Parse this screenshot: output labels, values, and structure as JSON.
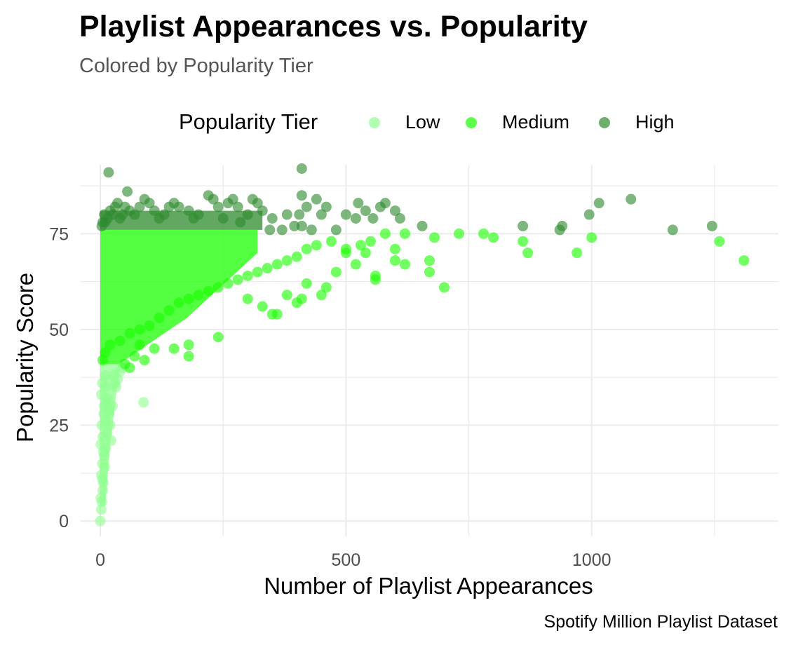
{
  "chart_data": {
    "type": "scatter",
    "title": "Playlist Appearances vs. Popularity",
    "subtitle": "Colored by Popularity Tier",
    "caption": "Spotify Million Playlist Dataset",
    "xlabel": "Number of Playlist Appearances",
    "ylabel": "Popularity Score",
    "xlim": [
      -40,
      1380
    ],
    "ylim": [
      -4,
      93
    ],
    "x_ticks": [
      0,
      500,
      1000
    ],
    "y_ticks": [
      0,
      25,
      50,
      75
    ],
    "grid": true,
    "legend": {
      "title": "Popularity Tier",
      "placement": "top",
      "entries": [
        "Low",
        "Medium",
        "High"
      ]
    },
    "series": [
      {
        "name": "Low",
        "color": "#90ff90",
        "points": [
          [
            0,
            0
          ],
          [
            3,
            5
          ],
          [
            5,
            8
          ],
          [
            2,
            12
          ],
          [
            4,
            15
          ],
          [
            6,
            18
          ],
          [
            1,
            20
          ],
          [
            5,
            22
          ],
          [
            3,
            25
          ],
          [
            7,
            28
          ],
          [
            8,
            30
          ],
          [
            2,
            33
          ],
          [
            4,
            36
          ],
          [
            10,
            38
          ],
          [
            12,
            35
          ],
          [
            15,
            32
          ],
          [
            18,
            28
          ],
          [
            20,
            25
          ],
          [
            25,
            30
          ],
          [
            30,
            36
          ],
          [
            35,
            37
          ],
          [
            40,
            39
          ],
          [
            22,
            21
          ],
          [
            88,
            31
          ],
          [
            12,
            26
          ],
          [
            6,
            10
          ],
          [
            9,
            14
          ],
          [
            11,
            19
          ],
          [
            14,
            23
          ],
          [
            17,
            29
          ],
          [
            1,
            6
          ],
          [
            2,
            3
          ],
          [
            4,
            11
          ],
          [
            8,
            17
          ],
          [
            13,
            31
          ],
          [
            28,
            38
          ],
          [
            32,
            35
          ],
          [
            45,
            40
          ]
        ]
      },
      {
        "name": "Medium",
        "color": "#1aff00",
        "points": [
          [
            600,
            68
          ],
          [
            670,
            68
          ],
          [
            700,
            61
          ],
          [
            670,
            65
          ],
          [
            620,
            67
          ],
          [
            560,
            63
          ],
          [
            560,
            64
          ],
          [
            540,
            70
          ],
          [
            520,
            67
          ],
          [
            500,
            70
          ],
          [
            480,
            65
          ],
          [
            460,
            61
          ],
          [
            450,
            59
          ],
          [
            420,
            62
          ],
          [
            410,
            58
          ],
          [
            400,
            57
          ],
          [
            380,
            59
          ],
          [
            360,
            54
          ],
          [
            350,
            54
          ],
          [
            330,
            56
          ],
          [
            300,
            58
          ],
          [
            240,
            48
          ],
          [
            180,
            43
          ],
          [
            180,
            46
          ],
          [
            150,
            45
          ],
          [
            110,
            45
          ],
          [
            90,
            42
          ],
          [
            80,
            46
          ],
          [
            60,
            40
          ],
          [
            70,
            43
          ],
          [
            50,
            41
          ],
          [
            1260,
            73
          ],
          [
            1310,
            68
          ],
          [
            1000,
            74
          ],
          [
            970,
            70
          ],
          [
            860,
            73
          ],
          [
            870,
            70
          ],
          [
            800,
            74
          ],
          [
            780,
            75
          ],
          [
            730,
            75
          ],
          [
            680,
            74
          ],
          [
            620,
            75
          ],
          [
            600,
            71
          ],
          [
            580,
            75
          ],
          [
            550,
            73
          ],
          [
            530,
            72
          ],
          [
            500,
            71
          ],
          [
            470,
            73
          ],
          [
            440,
            72
          ],
          [
            420,
            71
          ],
          [
            400,
            69
          ],
          [
            380,
            68
          ],
          [
            360,
            67
          ],
          [
            340,
            66
          ],
          [
            320,
            65
          ],
          [
            300,
            64
          ],
          [
            280,
            63
          ],
          [
            260,
            62
          ],
          [
            240,
            61
          ],
          [
            220,
            60
          ],
          [
            200,
            59
          ],
          [
            180,
            58
          ],
          [
            160,
            57
          ],
          [
            140,
            55
          ],
          [
            120,
            53
          ],
          [
            100,
            51
          ],
          [
            80,
            50
          ],
          [
            60,
            49
          ],
          [
            40,
            47
          ],
          [
            20,
            46
          ],
          [
            10,
            44
          ],
          [
            5,
            42
          ]
        ]
      },
      {
        "name": "High",
        "color": "#2e8b2e",
        "points": [
          [
            17,
            91
          ],
          [
            410,
            92
          ],
          [
            1080,
            84
          ],
          [
            1015,
            83
          ],
          [
            995,
            80
          ],
          [
            1245,
            77
          ],
          [
            1165,
            76
          ],
          [
            940,
            77
          ],
          [
            935,
            76
          ],
          [
            860,
            77
          ],
          [
            655,
            77
          ],
          [
            600,
            81
          ],
          [
            610,
            79
          ],
          [
            580,
            83
          ],
          [
            570,
            82
          ],
          [
            555,
            79
          ],
          [
            540,
            81
          ],
          [
            525,
            83
          ],
          [
            520,
            79
          ],
          [
            500,
            80
          ],
          [
            480,
            76
          ],
          [
            460,
            82
          ],
          [
            440,
            84
          ],
          [
            420,
            82
          ],
          [
            410,
            85
          ],
          [
            405,
            80
          ],
          [
            395,
            77
          ],
          [
            380,
            80
          ],
          [
            370,
            76
          ],
          [
            350,
            79
          ],
          [
            330,
            81
          ],
          [
            320,
            83
          ],
          [
            310,
            84
          ],
          [
            300,
            80
          ],
          [
            280,
            82
          ],
          [
            270,
            84
          ],
          [
            260,
            83
          ],
          [
            240,
            82
          ],
          [
            230,
            84
          ],
          [
            220,
            85
          ],
          [
            200,
            80
          ],
          [
            190,
            79
          ],
          [
            180,
            81
          ],
          [
            160,
            82
          ],
          [
            150,
            83
          ],
          [
            140,
            82
          ],
          [
            130,
            80
          ],
          [
            120,
            79
          ],
          [
            110,
            81
          ],
          [
            100,
            83
          ],
          [
            90,
            84
          ],
          [
            80,
            82
          ],
          [
            70,
            80
          ],
          [
            60,
            81
          ],
          [
            55,
            86
          ],
          [
            50,
            82
          ],
          [
            45,
            80
          ],
          [
            40,
            79
          ],
          [
            35,
            83
          ],
          [
            30,
            82
          ],
          [
            25,
            80
          ],
          [
            20,
            81
          ],
          [
            15,
            79
          ],
          [
            10,
            78
          ],
          [
            8,
            80
          ],
          [
            5,
            78
          ],
          [
            3,
            77
          ],
          [
            410,
            77
          ],
          [
            430,
            76
          ],
          [
            450,
            80
          ],
          [
            250,
            79
          ],
          [
            285,
            78
          ],
          [
            345,
            76
          ]
        ]
      }
    ],
    "dense_clusters": [
      {
        "series": "Low",
        "x_range": [
          0,
          40
        ],
        "y_range": [
          4,
          41
        ],
        "note": "many overlapping points"
      },
      {
        "series": "Medium",
        "x_range": [
          0,
          320
        ],
        "y_range": [
          41,
          76
        ],
        "note": "many overlapping points"
      },
      {
        "series": "High",
        "x_range": [
          0,
          330
        ],
        "y_range": [
          76,
          81
        ],
        "note": "many overlapping points"
      }
    ]
  }
}
